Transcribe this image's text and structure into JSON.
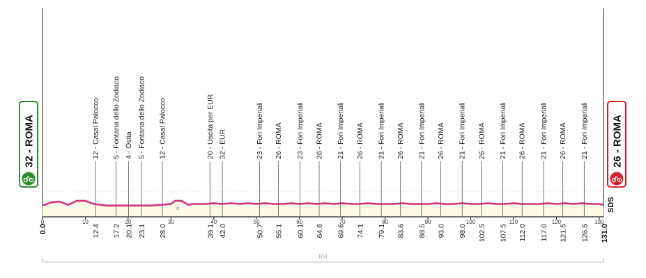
{
  "chart_data": {
    "type": "area",
    "start": {
      "label": "32 - ROMA",
      "km": "0.0",
      "color": "#2e8b2e"
    },
    "finish": {
      "label": "26 - ROMA",
      "km": "131.0",
      "color": "#d2232a"
    },
    "distance_ticks": [
      0,
      10,
      20,
      30,
      40,
      50,
      60,
      70,
      80,
      90,
      100,
      110,
      120,
      130
    ],
    "xlim": [
      0,
      131
    ],
    "profile": {
      "line_color": "#d6307f",
      "fill_color": "#fbfbe6",
      "x": [
        0,
        2,
        4,
        6,
        8,
        10,
        12,
        15,
        20,
        25,
        28,
        30,
        31,
        32.5,
        34,
        35,
        36,
        38,
        40,
        42,
        44,
        46,
        48,
        50,
        52,
        54,
        56,
        58,
        60,
        62,
        64,
        66,
        68,
        70,
        72,
        74,
        76,
        78,
        80,
        82,
        84,
        86,
        88,
        90,
        92,
        94,
        96,
        98,
        100,
        102,
        104,
        106,
        108,
        110,
        112,
        114,
        116,
        118,
        120,
        122,
        124,
        126,
        128,
        130,
        131
      ],
      "y": [
        14,
        18,
        19,
        15,
        20,
        20,
        16,
        14,
        14,
        14,
        15,
        16,
        20,
        20,
        15,
        16,
        16,
        16,
        17,
        16,
        17,
        16,
        17,
        16,
        17,
        16,
        16,
        17,
        16,
        17,
        16,
        17,
        16,
        17,
        16,
        16,
        17,
        16,
        16,
        16,
        17,
        16,
        16,
        16,
        17,
        16,
        16,
        17,
        16,
        16,
        17,
        16,
        16,
        17,
        16,
        16,
        16,
        17,
        16,
        17,
        16,
        17,
        16,
        16,
        15
      ],
      "ylim": [
        0,
        260
      ]
    },
    "waypoints": [
      {
        "name": "12 - Casal Palocco",
        "km": "12.4"
      },
      {
        "name": "5 - Fontana dello Zodiaco",
        "km": "17.2"
      },
      {
        "name": "4 - Ostia",
        "km": "20.1"
      },
      {
        "name": "5 - Fontana dello Zodiaco",
        "km": "23.1"
      },
      {
        "name": "12 - Casal Palocco",
        "km": "28.0"
      },
      {
        "name": "20 - Uscita per EUR",
        "km": "39.1"
      },
      {
        "name": "32 - EUR",
        "km": "42.0"
      },
      {
        "name": "23 - Fori Imperiali",
        "km": "50.7"
      },
      {
        "name": "26 - ROMA",
        "km": "55.1"
      },
      {
        "name": "23 - Fori Imperiali",
        "km": "60.1"
      },
      {
        "name": "26 - ROMA",
        "km": "64.6"
      },
      {
        "name": "21 - Fori Imperiali",
        "km": "69.6"
      },
      {
        "name": "26 - ROMA",
        "km": "74.1"
      },
      {
        "name": "21 - Fori Imperiali",
        "km": "79.1"
      },
      {
        "name": "26 - ROMA",
        "km": "83.6"
      },
      {
        "name": "21 - Fori Imperiali",
        "km": "88.5"
      },
      {
        "name": "26 - ROMA",
        "km": "93.0"
      },
      {
        "name": "21 - Fori Imperiali",
        "km": "98.0"
      },
      {
        "name": "26 - ROMA",
        "km": "102.5"
      },
      {
        "name": "21 - Fori Imperiali",
        "km": "107.5"
      },
      {
        "name": "26 - ROMA",
        "km": "112.0"
      },
      {
        "name": "21 - Fori Imperiali",
        "km": "117.0"
      },
      {
        "name": "26 - ROMA",
        "km": "121.5"
      },
      {
        "name": "21 - Fori Imperiali",
        "km": "126.5"
      }
    ],
    "province_label": "RM",
    "brand": "SDS"
  }
}
